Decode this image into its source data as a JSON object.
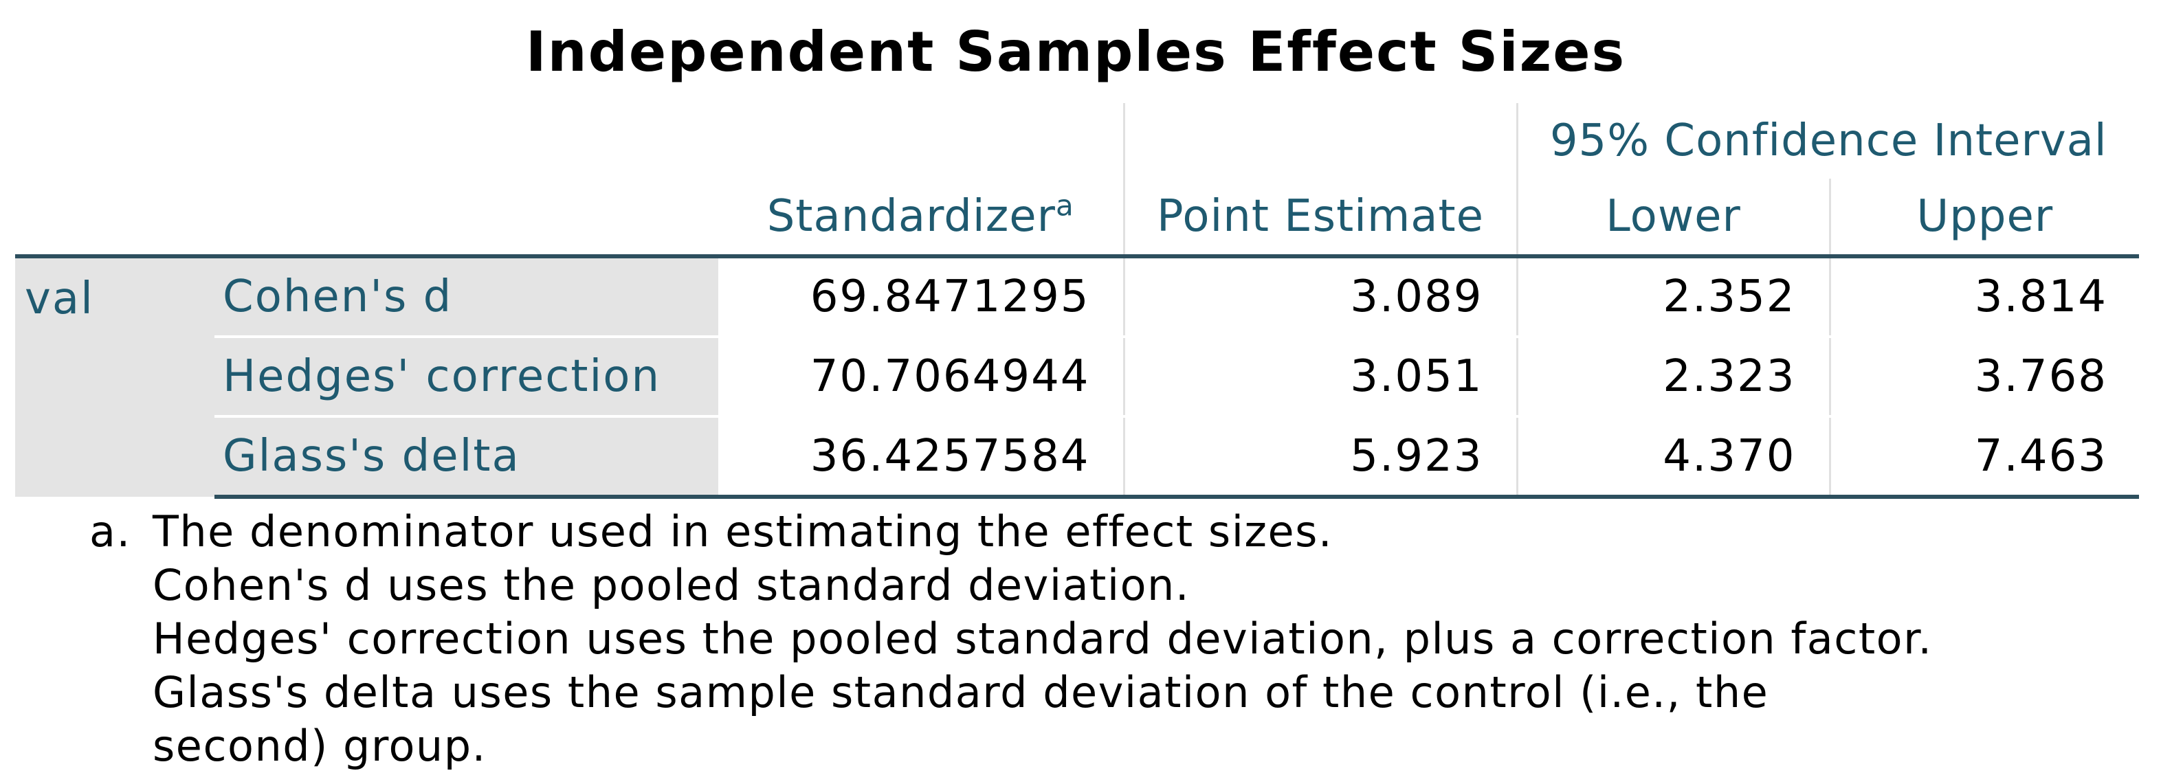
{
  "title": "Independent Samples Effect Sizes",
  "header": {
    "ci_group": "95% Confidence Interval",
    "standardizer": "Standardizer",
    "standardizer_sup": "a",
    "point_estimate": "Point Estimate",
    "lower": "Lower",
    "upper": "Upper"
  },
  "variable": "val",
  "rows": [
    {
      "measure": "Cohen's d",
      "standardizer": "69.8471295",
      "point_estimate": "3.089",
      "lower": "2.352",
      "upper": "3.814"
    },
    {
      "measure": "Hedges' correction",
      "standardizer": "70.7064944",
      "point_estimate": "3.051",
      "lower": "2.323",
      "upper": "3.768"
    },
    {
      "measure": "Glass's delta",
      "standardizer": "36.4257584",
      "point_estimate": "5.923",
      "lower": "4.370",
      "upper": "7.463"
    }
  ],
  "footnote": {
    "marker": "a.",
    "lines": [
      "The denominator used in estimating the effect sizes.",
      "Cohen's d uses the pooled standard deviation.",
      "Hedges' correction uses the pooled standard deviation, plus a correction factor.",
      "Glass's delta uses the sample standard deviation of the control (i.e., the",
      "second) group."
    ]
  },
  "colors": {
    "header_text": "#1f5a70",
    "label_background": "#e4e4e4",
    "rule": "#2d4f5e"
  }
}
